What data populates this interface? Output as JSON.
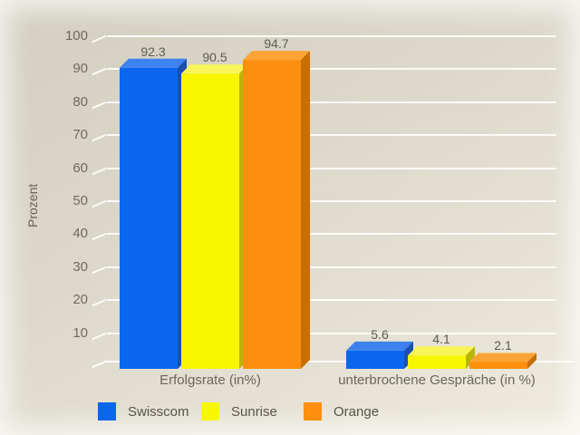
{
  "chart_data": {
    "type": "bar",
    "style": "3d",
    "title": "",
    "ylabel": "Prozent",
    "categories": [
      "Erfolgsrate (in%)",
      "unterbrochene Gespräche (in %)"
    ],
    "series": [
      {
        "name": "Swisscom",
        "values": [
          92.3,
          5.6
        ],
        "color": "#0b66ef",
        "color_top": "#3d82ee",
        "color_side": "#1a4fb0"
      },
      {
        "name": "Sunrise",
        "values": [
          90.5,
          4.1
        ],
        "color": "#f8f702",
        "color_top": "#f7f558",
        "color_side": "#b9b609"
      },
      {
        "name": "Orange",
        "values": [
          94.7,
          2.1
        ],
        "color": "#fd8f0e",
        "color_top": "#fba435",
        "color_side": "#c96d05"
      }
    ],
    "yticks": [
      10,
      20,
      30,
      40,
      50,
      60,
      70,
      80,
      90,
      100
    ],
    "ylim": [
      0,
      100
    ],
    "grid": true,
    "gridline_color": "#fdfcf7",
    "background_color": "#ddd9cc",
    "text_color": "#6a665c",
    "legend_position": "bottom"
  }
}
